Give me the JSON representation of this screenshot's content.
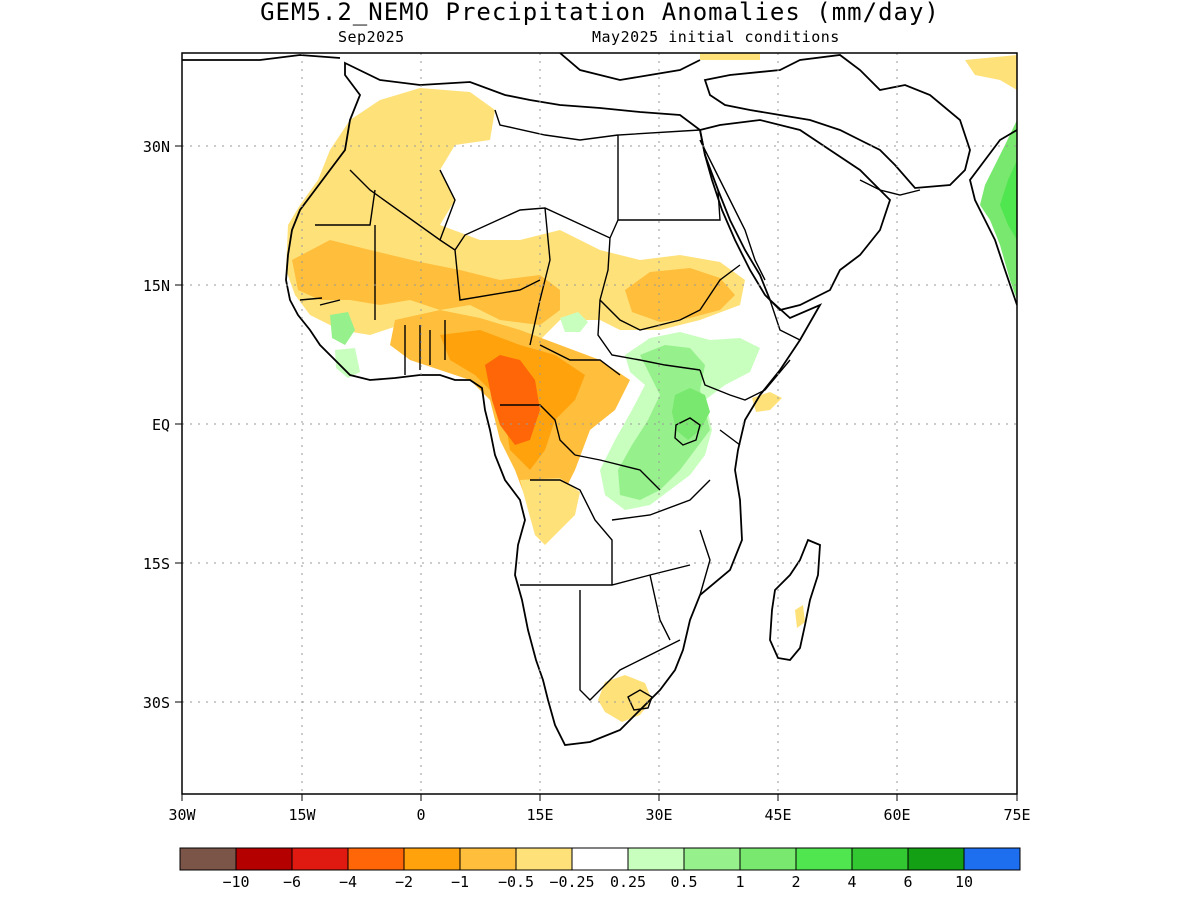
{
  "title": "GEM5.2_NEMO Precipitation Anomalies (mm/day)",
  "subtitle_left": "Sep2025",
  "subtitle_right": "May2025 initial conditions",
  "axes": {
    "lon_ticks": [
      "30W",
      "15W",
      "0",
      "15E",
      "30E",
      "45E",
      "60E",
      "75E"
    ],
    "lat_ticks": [
      "30N",
      "15N",
      "EQ",
      "15S",
      "30S"
    ]
  },
  "colorbar": {
    "colors": [
      "#7a5548",
      "#b50000",
      "#e01a10",
      "#ff6608",
      "#ffa20c",
      "#ffbe3c",
      "#ffe17a",
      "#ffffff",
      "#c8ffbe",
      "#96f08c",
      "#78e86e",
      "#50e650",
      "#32c832",
      "#14a014",
      "#1e6ef0"
    ],
    "labels": [
      "−10",
      "−6",
      "−4",
      "−2",
      "−1",
      "−0.5",
      "−0.25",
      "0.25",
      "0.5",
      "1",
      "2",
      "4",
      "6",
      "10"
    ]
  },
  "anomaly_colors": {
    "dry_light": "#ffe17a",
    "dry_mid": "#ffbe3c",
    "dry_strong": "#ffa20c",
    "dry_very": "#ff6608",
    "wet_light": "#c8ffbe",
    "wet_mid": "#96f08c",
    "wet_strong": "#78e86e",
    "wet_very": "#50e650"
  }
}
